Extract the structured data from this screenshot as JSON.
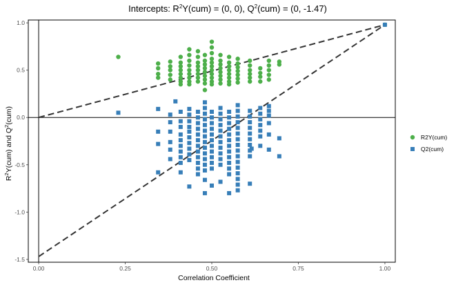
{
  "chart_data": {
    "type": "scatter",
    "title": {
      "part1": "Intercepts: R",
      "sup1": "2",
      "part2": "Y(cum) = (0, 0), Q",
      "sup2": "2",
      "part3": "(cum) = (0, -1.47)"
    },
    "xlabel": "Correlation Coefficient",
    "ylabel": {
      "part1": "R",
      "sup1": "2",
      "part2": "Y(cum) and Q",
      "sup2": "2",
      "part3": "(cum)"
    },
    "xlim": [
      -0.03,
      1.03
    ],
    "ylim": [
      -1.53,
      1.03
    ],
    "xticks": [
      {
        "value": 0,
        "label": "0.00"
      },
      {
        "value": 0.25,
        "label": "0.25"
      },
      {
        "value": 0.5,
        "label": "0.50"
      },
      {
        "value": 0.75,
        "label": "0.75"
      },
      {
        "value": 1,
        "label": "1.00"
      }
    ],
    "yticks": [
      {
        "value": 1,
        "label": "1.0"
      },
      {
        "value": 0.5,
        "label": "0.5"
      },
      {
        "value": 0,
        "label": "0.0"
      },
      {
        "value": -0.5,
        "label": "-0.5"
      },
      {
        "value": -1,
        "label": "-1.0"
      },
      {
        "value": -1.5,
        "label": "-1.5"
      }
    ],
    "grid": false,
    "legend_position": "right",
    "reference_lines": [
      {
        "orientation": "horizontal",
        "value": 0
      },
      {
        "orientation": "vertical",
        "value": 0
      }
    ],
    "intercept_lines": [
      {
        "series": "R2Y(cum)",
        "from": [
          0,
          0
        ],
        "to": [
          1,
          0.98
        ]
      },
      {
        "series": "Q2(cum)",
        "from": [
          0,
          -1.47
        ],
        "to": [
          1,
          0.98
        ]
      }
    ],
    "series": [
      {
        "name": "R2Y(cum)",
        "color": "#4daf4a",
        "marker": "circle",
        "points": [
          [
            0.23,
            0.64
          ],
          [
            0.345,
            0.57
          ],
          [
            0.345,
            0.52
          ],
          [
            0.345,
            0.46
          ],
          [
            0.345,
            0.42
          ],
          [
            0.38,
            0.59
          ],
          [
            0.38,
            0.54
          ],
          [
            0.38,
            0.5
          ],
          [
            0.38,
            0.45
          ],
          [
            0.38,
            0.4
          ],
          [
            0.41,
            0.64
          ],
          [
            0.41,
            0.58
          ],
          [
            0.41,
            0.54
          ],
          [
            0.41,
            0.5
          ],
          [
            0.41,
            0.46
          ],
          [
            0.41,
            0.42
          ],
          [
            0.41,
            0.38
          ],
          [
            0.41,
            0.35
          ],
          [
            0.435,
            0.72
          ],
          [
            0.435,
            0.66
          ],
          [
            0.435,
            0.6
          ],
          [
            0.435,
            0.55
          ],
          [
            0.435,
            0.5
          ],
          [
            0.435,
            0.46
          ],
          [
            0.435,
            0.42
          ],
          [
            0.435,
            0.38
          ],
          [
            0.435,
            0.35
          ],
          [
            0.46,
            0.7
          ],
          [
            0.46,
            0.64
          ],
          [
            0.46,
            0.58
          ],
          [
            0.46,
            0.54
          ],
          [
            0.46,
            0.5
          ],
          [
            0.46,
            0.46
          ],
          [
            0.46,
            0.42
          ],
          [
            0.46,
            0.38
          ],
          [
            0.48,
            0.66
          ],
          [
            0.48,
            0.6
          ],
          [
            0.48,
            0.56
          ],
          [
            0.48,
            0.52
          ],
          [
            0.48,
            0.48
          ],
          [
            0.48,
            0.44
          ],
          [
            0.48,
            0.4
          ],
          [
            0.48,
            0.36
          ],
          [
            0.48,
            0.29
          ],
          [
            0.5,
            0.8
          ],
          [
            0.5,
            0.74
          ],
          [
            0.5,
            0.68
          ],
          [
            0.5,
            0.62
          ],
          [
            0.5,
            0.58
          ],
          [
            0.5,
            0.54
          ],
          [
            0.5,
            0.5
          ],
          [
            0.5,
            0.46
          ],
          [
            0.5,
            0.42
          ],
          [
            0.5,
            0.38
          ],
          [
            0.5,
            0.35
          ],
          [
            0.525,
            0.66
          ],
          [
            0.525,
            0.6
          ],
          [
            0.525,
            0.56
          ],
          [
            0.525,
            0.52
          ],
          [
            0.525,
            0.48
          ],
          [
            0.525,
            0.44
          ],
          [
            0.525,
            0.4
          ],
          [
            0.525,
            0.36
          ],
          [
            0.55,
            0.64
          ],
          [
            0.55,
            0.58
          ],
          [
            0.55,
            0.54
          ],
          [
            0.55,
            0.5
          ],
          [
            0.55,
            0.46
          ],
          [
            0.55,
            0.42
          ],
          [
            0.55,
            0.38
          ],
          [
            0.55,
            0.35
          ],
          [
            0.575,
            0.62
          ],
          [
            0.575,
            0.57
          ],
          [
            0.575,
            0.53
          ],
          [
            0.575,
            0.49
          ],
          [
            0.575,
            0.45
          ],
          [
            0.575,
            0.41
          ],
          [
            0.575,
            0.37
          ],
          [
            0.61,
            0.6
          ],
          [
            0.61,
            0.55
          ],
          [
            0.61,
            0.5
          ],
          [
            0.61,
            0.46
          ],
          [
            0.61,
            0.42
          ],
          [
            0.61,
            0.38
          ],
          [
            0.64,
            0.52
          ],
          [
            0.64,
            0.47
          ],
          [
            0.64,
            0.43
          ],
          [
            0.64,
            0.38
          ],
          [
            0.665,
            0.6
          ],
          [
            0.665,
            0.55
          ],
          [
            0.665,
            0.5
          ],
          [
            0.665,
            0.45
          ],
          [
            0.665,
            0.4
          ],
          [
            0.695,
            0.59
          ],
          [
            0.695,
            0.56
          ],
          [
            1.0,
            0.98
          ]
        ]
      },
      {
        "name": "Q2(cum)",
        "color": "#377eb8",
        "marker": "square",
        "points": [
          [
            0.23,
            0.05
          ],
          [
            0.345,
            0.09
          ],
          [
            0.345,
            -0.15
          ],
          [
            0.345,
            -0.28
          ],
          [
            0.345,
            -0.58
          ],
          [
            0.38,
            0.03
          ],
          [
            0.38,
            -0.05
          ],
          [
            0.38,
            -0.15
          ],
          [
            0.38,
            -0.26
          ],
          [
            0.38,
            -0.34
          ],
          [
            0.38,
            -0.44
          ],
          [
            0.395,
            0.17
          ],
          [
            0.41,
            0.06
          ],
          [
            0.41,
            -0.04
          ],
          [
            0.41,
            -0.1
          ],
          [
            0.41,
            -0.18
          ],
          [
            0.41,
            -0.24
          ],
          [
            0.41,
            -0.3
          ],
          [
            0.41,
            -0.36
          ],
          [
            0.41,
            -0.42
          ],
          [
            0.41,
            -0.48
          ],
          [
            0.41,
            -0.58
          ],
          [
            0.435,
            0.09
          ],
          [
            0.435,
            0.03
          ],
          [
            0.435,
            -0.04
          ],
          [
            0.435,
            -0.1
          ],
          [
            0.435,
            -0.15
          ],
          [
            0.435,
            -0.21
          ],
          [
            0.435,
            -0.27
          ],
          [
            0.435,
            -0.33
          ],
          [
            0.435,
            -0.39
          ],
          [
            0.435,
            -0.45
          ],
          [
            0.435,
            -0.73
          ],
          [
            0.46,
            0.06
          ],
          [
            0.46,
            0.0
          ],
          [
            0.46,
            -0.06
          ],
          [
            0.46,
            -0.12
          ],
          [
            0.46,
            -0.18
          ],
          [
            0.46,
            -0.24
          ],
          [
            0.46,
            -0.3
          ],
          [
            0.46,
            -0.36
          ],
          [
            0.46,
            -0.42
          ],
          [
            0.46,
            -0.48
          ],
          [
            0.46,
            -0.54
          ],
          [
            0.46,
            -0.6
          ],
          [
            0.48,
            0.16
          ],
          [
            0.48,
            0.1
          ],
          [
            0.48,
            0.04
          ],
          [
            0.48,
            -0.02
          ],
          [
            0.48,
            -0.08
          ],
          [
            0.48,
            -0.14
          ],
          [
            0.48,
            -0.2
          ],
          [
            0.48,
            -0.26
          ],
          [
            0.48,
            -0.32
          ],
          [
            0.48,
            -0.38
          ],
          [
            0.48,
            -0.44
          ],
          [
            0.48,
            -0.5
          ],
          [
            0.48,
            -0.56
          ],
          [
            0.48,
            -0.66
          ],
          [
            0.48,
            -0.8
          ],
          [
            0.5,
            0.06
          ],
          [
            0.5,
            0.0
          ],
          [
            0.5,
            -0.06
          ],
          [
            0.5,
            -0.12
          ],
          [
            0.5,
            -0.18
          ],
          [
            0.5,
            -0.24
          ],
          [
            0.5,
            -0.3
          ],
          [
            0.5,
            -0.36
          ],
          [
            0.5,
            -0.42
          ],
          [
            0.5,
            -0.48
          ],
          [
            0.5,
            -0.54
          ],
          [
            0.5,
            -0.72
          ],
          [
            0.525,
            0.1
          ],
          [
            0.525,
            0.04
          ],
          [
            0.525,
            -0.02
          ],
          [
            0.525,
            -0.08
          ],
          [
            0.525,
            -0.14
          ],
          [
            0.525,
            -0.2
          ],
          [
            0.525,
            -0.26
          ],
          [
            0.525,
            -0.32
          ],
          [
            0.525,
            -0.38
          ],
          [
            0.525,
            -0.44
          ],
          [
            0.525,
            -0.5
          ],
          [
            0.525,
            -0.68
          ],
          [
            0.55,
            0.06
          ],
          [
            0.55,
            0.0
          ],
          [
            0.55,
            -0.06
          ],
          [
            0.55,
            -0.12
          ],
          [
            0.55,
            -0.18
          ],
          [
            0.55,
            -0.24
          ],
          [
            0.55,
            -0.3
          ],
          [
            0.55,
            -0.36
          ],
          [
            0.55,
            -0.42
          ],
          [
            0.55,
            -0.48
          ],
          [
            0.55,
            -0.54
          ],
          [
            0.55,
            -0.6
          ],
          [
            0.55,
            -0.8
          ],
          [
            0.575,
            0.13
          ],
          [
            0.575,
            0.07
          ],
          [
            0.575,
            0.01
          ],
          [
            0.575,
            -0.05
          ],
          [
            0.575,
            -0.11
          ],
          [
            0.575,
            -0.17
          ],
          [
            0.575,
            -0.23
          ],
          [
            0.575,
            -0.29
          ],
          [
            0.575,
            -0.35
          ],
          [
            0.575,
            -0.41
          ],
          [
            0.575,
            -0.47
          ],
          [
            0.575,
            -0.53
          ],
          [
            0.575,
            -0.59
          ],
          [
            0.575,
            -0.65
          ],
          [
            0.575,
            -0.71
          ],
          [
            0.575,
            -0.77
          ],
          [
            0.61,
            0.07
          ],
          [
            0.61,
            0.01
          ],
          [
            0.61,
            -0.05
          ],
          [
            0.61,
            -0.11
          ],
          [
            0.61,
            -0.17
          ],
          [
            0.61,
            -0.23
          ],
          [
            0.61,
            -0.29
          ],
          [
            0.61,
            -0.35
          ],
          [
            0.61,
            -0.41
          ],
          [
            0.61,
            -0.7
          ],
          [
            0.615,
            -0.33
          ],
          [
            0.64,
            0.1
          ],
          [
            0.64,
            0.04
          ],
          [
            0.64,
            -0.02
          ],
          [
            0.64,
            -0.08
          ],
          [
            0.64,
            -0.14
          ],
          [
            0.64,
            -0.2
          ],
          [
            0.64,
            -0.3
          ],
          [
            0.665,
            0.12
          ],
          [
            0.665,
            0.07
          ],
          [
            0.665,
            0.02
          ],
          [
            0.665,
            -0.06
          ],
          [
            0.665,
            -0.18
          ],
          [
            0.665,
            -0.34
          ],
          [
            0.695,
            -0.22
          ],
          [
            0.695,
            -0.41
          ],
          [
            1.0,
            0.98
          ]
        ]
      }
    ]
  }
}
